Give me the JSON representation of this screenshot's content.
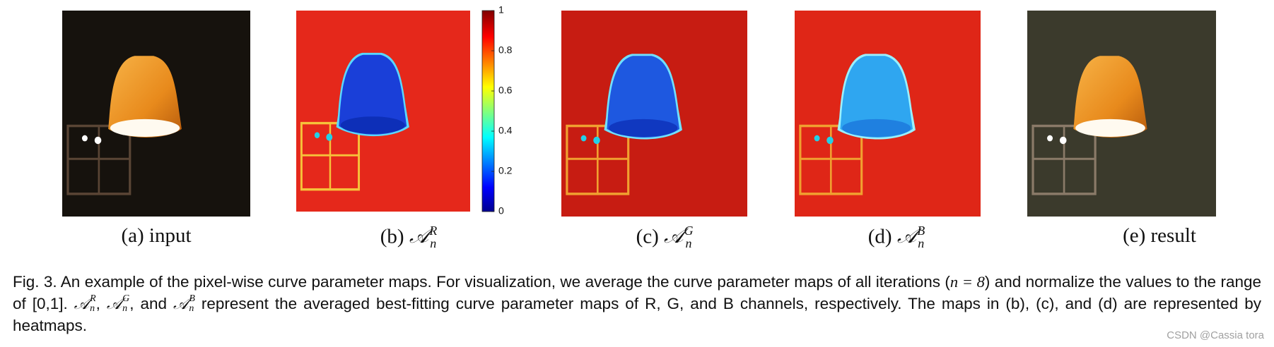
{
  "panels": [
    {
      "label": "(a) input"
    },
    {
      "label": "(b)",
      "symbol": "𝒜",
      "sup": "R",
      "sub": "n"
    },
    {
      "label": "(c)",
      "symbol": "𝒜",
      "sup": "G",
      "sub": "n"
    },
    {
      "label": "(d)",
      "symbol": "𝒜",
      "sup": "B",
      "sub": "n"
    },
    {
      "label": "(e) result"
    }
  ],
  "colorbar": {
    "ylim": [
      0,
      1
    ],
    "yticks": [
      0,
      0.2,
      0.4,
      0.6,
      0.8,
      1
    ]
  },
  "caption": [
    {
      "text": "Fig. 3. An example of the pixel-wise curve parameter maps. For visualization, we average the curve parameter maps of all iterations ("
    },
    {
      "math": "n = 8"
    },
    {
      "text": ") and normalize the values to the range of [0,1]. "
    },
    {
      "symbol": "𝒜",
      "sup": "R",
      "sub": "n"
    },
    {
      "text": ", "
    },
    {
      "symbol": "𝒜",
      "sup": "G",
      "sub": "n"
    },
    {
      "text": ", and "
    },
    {
      "symbol": "𝒜",
      "sup": "B",
      "sub": "n"
    },
    {
      "text": " represent the averaged best-fitting curve parameter maps of R, G, and B channels, respectively. The maps in (b), (c), and (d) are represented by heatmaps."
    }
  ],
  "watermark": "CSDN @Cassia tora"
}
